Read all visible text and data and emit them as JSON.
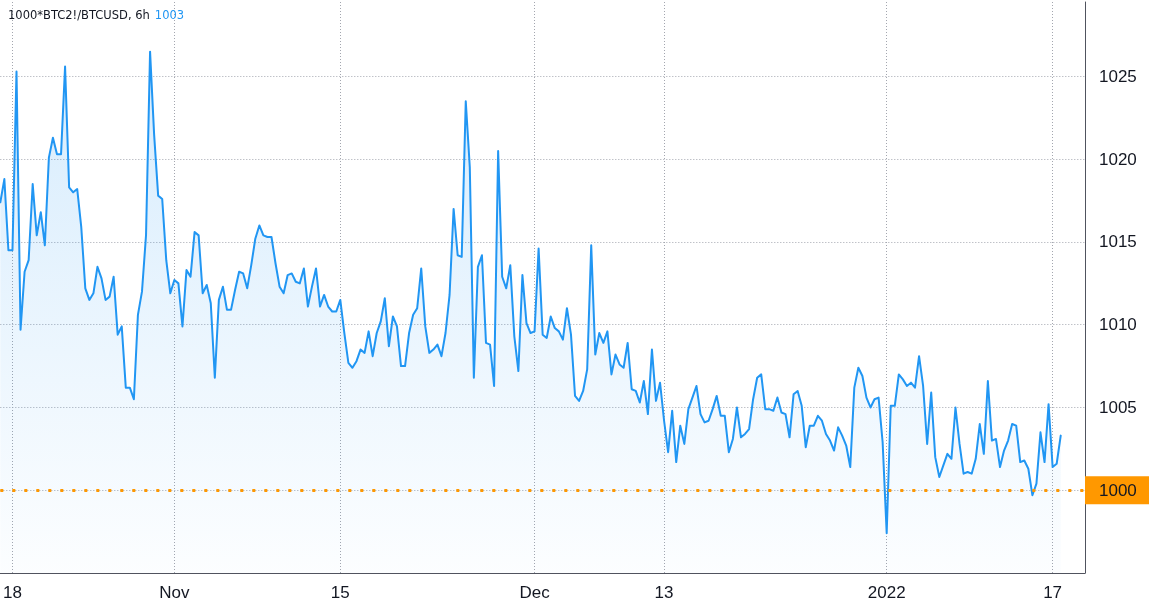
{
  "chart_data": {
    "type": "area",
    "title": "1000*BTC2!/BTCUSD, 6h",
    "subtitle": "1003",
    "categories": [
      null,
      null,
      null,
      "18",
      null,
      null,
      null,
      null,
      null,
      null,
      null,
      null,
      null,
      null,
      null,
      null,
      null,
      null,
      null,
      null,
      null,
      null,
      null,
      null,
      null,
      null,
      null,
      null,
      null,
      null,
      null,
      null,
      null,
      null,
      null,
      null,
      null,
      null,
      null,
      null,
      null,
      null,
      null,
      "Nov",
      null,
      null,
      null,
      null,
      null,
      null,
      null,
      null,
      null,
      null,
      null,
      null,
      null,
      null,
      null,
      null,
      null,
      null,
      null,
      null,
      null,
      null,
      null,
      null,
      null,
      null,
      null,
      null,
      null,
      null,
      null,
      null,
      null,
      null,
      null,
      null,
      null,
      null,
      null,
      null,
      "15",
      null,
      null,
      null,
      null,
      null,
      null,
      null,
      null,
      null,
      null,
      null,
      null,
      null,
      null,
      null,
      null,
      null,
      null,
      null,
      null,
      null,
      null,
      null,
      null,
      null,
      null,
      null,
      null,
      null,
      null,
      null,
      null,
      null,
      null,
      null,
      null,
      null,
      null,
      null,
      null,
      null,
      null,
      null,
      null,
      null,
      null,
      null,
      "Dec",
      null,
      null,
      null,
      null,
      null,
      null,
      null,
      null,
      null,
      null,
      null,
      null,
      null,
      null,
      null,
      null,
      null,
      null,
      null,
      null,
      null,
      null,
      null,
      null,
      null,
      null,
      null,
      null,
      null,
      null,
      null,
      "13",
      null,
      null,
      null,
      null,
      null,
      null,
      null,
      null,
      null,
      null,
      null,
      null,
      null,
      null,
      null,
      null,
      null,
      null,
      null,
      null,
      null,
      null,
      null,
      null,
      null,
      null,
      null,
      null,
      null,
      null,
      null,
      null,
      null,
      null,
      null,
      null,
      null,
      null,
      null,
      null,
      null,
      null,
      null,
      null,
      null,
      null,
      null,
      null,
      null,
      null,
      null,
      null,
      null,
      null,
      "2022",
      null,
      null,
      null,
      null,
      null,
      null,
      null,
      null,
      null,
      null,
      null,
      null,
      null,
      null,
      null,
      null,
      null,
      null,
      null,
      null,
      null,
      null,
      null,
      null,
      null,
      null,
      null,
      null,
      null,
      null,
      null,
      null,
      null,
      null,
      null,
      null,
      null,
      null,
      null,
      null,
      "17",
      null,
      null,
      null,
      null,
      null,
      null,
      null,
      null
    ],
    "values": [
      1017.4,
      1018.8,
      1014.5,
      1014.5,
      1025.3,
      1009.7,
      1013.2,
      1013.9,
      1018.5,
      1015.4,
      1016.8,
      1014.8,
      1020.1,
      1021.3,
      1020.3,
      1020.3,
      1025.6,
      1018.3,
      1018.0,
      1018.2,
      1015.9,
      1012.2,
      1011.5,
      1011.9,
      1013.5,
      1012.8,
      1011.5,
      1011.7,
      1012.9,
      1009.4,
      1009.9,
      1006.2,
      1006.2,
      1005.5,
      1010.6,
      1012.0,
      1015.4,
      1026.5,
      1021.5,
      1017.8,
      1017.6,
      1013.9,
      1011.9,
      1012.7,
      1012.5,
      1009.9,
      1013.3,
      1012.9,
      1015.6,
      1015.4,
      1011.9,
      1012.4,
      1011.3,
      1006.8,
      1011.5,
      1012.3,
      1010.9,
      1010.9,
      1012.1,
      1013.2,
      1013.1,
      1012.2,
      1013.6,
      1015.2,
      1016.0,
      1015.4,
      1015.3,
      1015.3,
      1013.7,
      1012.3,
      1011.9,
      1013.0,
      1013.1,
      1012.6,
      1012.5,
      1013.4,
      1011.1,
      1012.3,
      1013.4,
      1011.1,
      1011.8,
      1011.1,
      1010.8,
      1010.8,
      1011.5,
      1009.5,
      1007.7,
      1007.4,
      1007.8,
      1008.5,
      1008.3,
      1009.6,
      1008.1,
      1009.5,
      1010.2,
      1011.6,
      1008.7,
      1010.5,
      1009.9,
      1007.5,
      1007.5,
      1009.5,
      1010.6,
      1011.0,
      1013.4,
      1009.9,
      1008.3,
      1008.5,
      1008.8,
      1008.1,
      1009.5,
      1011.8,
      1017.0,
      1014.2,
      1014.1,
      1023.5,
      1019.5,
      1006.8,
      1013.5,
      1014.2,
      1008.9,
      1008.8,
      1006.3,
      1020.5,
      1012.9,
      1012.2,
      1013.6,
      1009.3,
      1007.2,
      1013.0,
      1010.1,
      1009.5,
      1009.6,
      1014.6,
      1009.4,
      1009.2,
      1010.5,
      1009.8,
      1009.6,
      1009.1,
      1011.0,
      1009.4,
      1005.7,
      1005.4,
      1006.0,
      1007.3,
      1014.8,
      1008.2,
      1009.5,
      1008.9,
      1009.6,
      1007.0,
      1008.2,
      1007.6,
      1007.4,
      1008.9,
      1006.1,
      1006.0,
      1005.3,
      1006.6,
      1004.6,
      1008.5,
      1005.4,
      1006.5,
      1004.2,
      1002.3,
      1004.8,
      1001.7,
      1003.9,
      1002.8,
      1004.9,
      1005.6,
      1006.3,
      1004.6,
      1004.1,
      1004.2,
      1004.9,
      1005.7,
      1004.5,
      1004.5,
      1002.3,
      1003.1,
      1005.0,
      1003.2,
      1003.4,
      1003.7,
      1005.5,
      1006.8,
      1007.0,
      1004.9,
      1004.9,
      1004.8,
      1005.6,
      1004.7,
      1004.6,
      1003.2,
      1005.8,
      1006.0,
      1005.1,
      1002.6,
      1003.9,
      1003.9,
      1004.5,
      1004.2,
      1003.4,
      1003.0,
      1002.4,
      1003.8,
      1003.3,
      1002.7,
      1001.4,
      1006.2,
      1007.4,
      1006.9,
      1005.6,
      1005.0,
      1005.5,
      1005.6,
      1002.9,
      997.4,
      1005.1,
      1005.1,
      1007.0,
      1006.7,
      1006.3,
      1006.5,
      1006.2,
      1008.1,
      1006.3,
      1002.8,
      1005.9,
      1002.0,
      1000.8,
      1001.5,
      1002.2,
      1001.9,
      1005.0,
      1002.8,
      1001.0,
      1001.1,
      1001.0,
      1001.9,
      1004.0,
      1002.2,
      1006.6,
      1003.0,
      1003.1,
      1001.4,
      1002.4,
      1003.0,
      1004.0,
      1003.9,
      1001.7,
      1001.8,
      1001.3,
      999.7,
      1000.4,
      1003.5,
      1001.7,
      1005.2,
      1001.4,
      1001.6,
      1003.3,
      null,
      null,
      null,
      null,
      null,
      null
    ],
    "color": "#2196f3",
    "ylim": [
      995,
      1029.5
    ],
    "yticks": [
      {
        "value": 1000,
        "label": null
      },
      1005,
      1010,
      1015,
      1020,
      1025
    ],
    "grid": true,
    "marker": "none",
    "ref_lines": [
      {
        "axis": "y",
        "value": 1000,
        "label": "1000",
        "color": "#ff9800",
        "line_style": "dotted"
      }
    ]
  }
}
